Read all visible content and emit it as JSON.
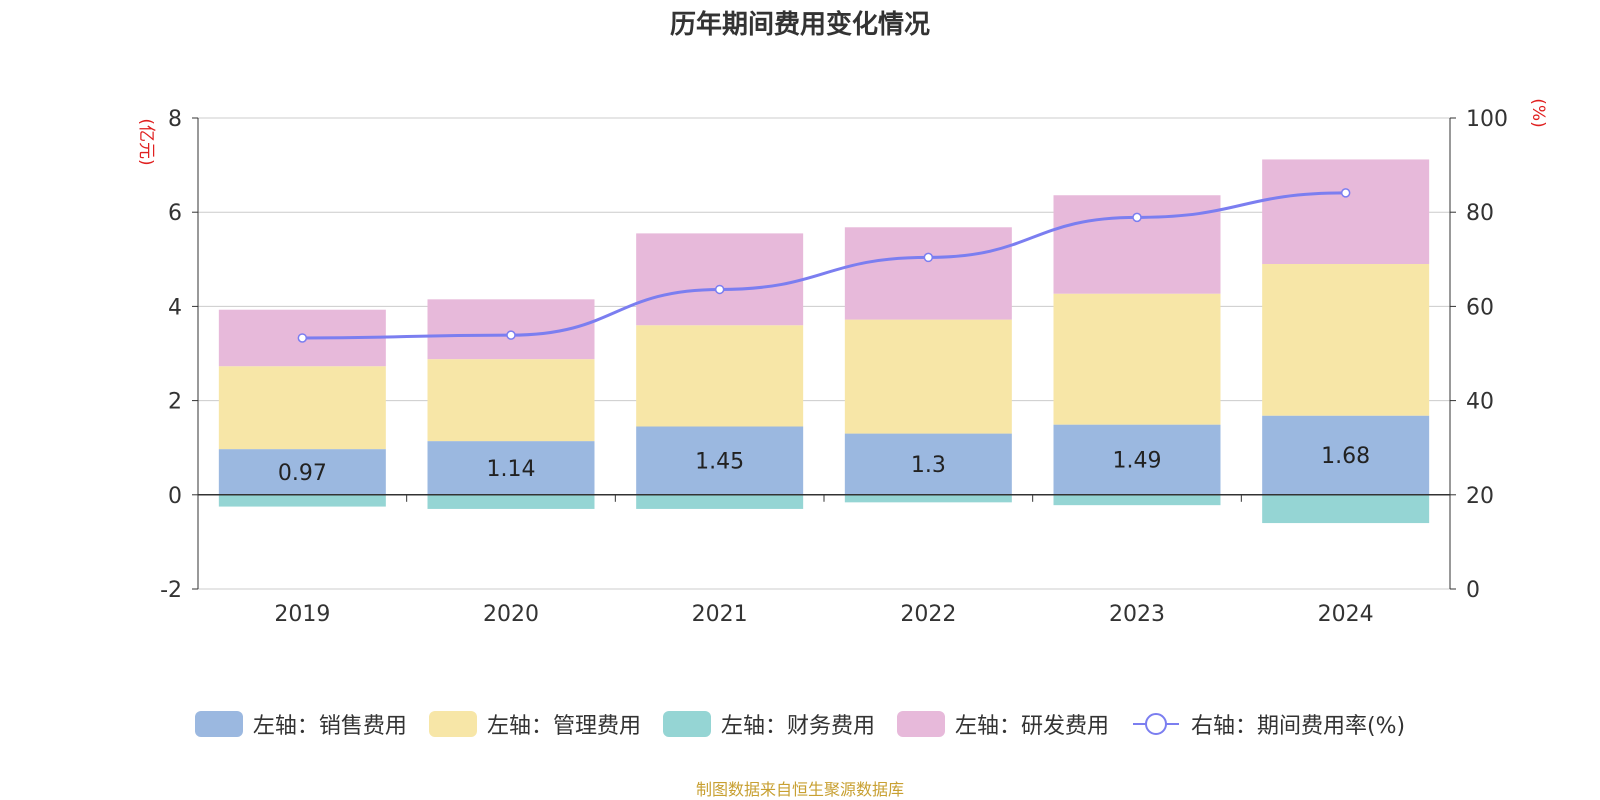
{
  "title": "历年期间费用变化情况",
  "source": "制图数据来自恒生聚源数据库",
  "legend": [
    {
      "label": "左轴：销售费用",
      "color": "#9bb8e0",
      "type": "bar"
    },
    {
      "label": "左轴：管理费用",
      "color": "#f7e6a7",
      "type": "bar"
    },
    {
      "label": "左轴：财务费用",
      "color": "#95d5d4",
      "type": "bar"
    },
    {
      "label": "左轴：研发费用",
      "color": "#e7b9da",
      "type": "bar"
    },
    {
      "label": "右轴：期间费用率(%)",
      "color": "#7b7ef0",
      "type": "line"
    }
  ],
  "chart_data": {
    "type": "bar",
    "stacked": true,
    "title": "历年期间费用变化情况",
    "categories": [
      "2019",
      "2020",
      "2021",
      "2022",
      "2023",
      "2024"
    ],
    "left_axis": {
      "label": "(亿元)",
      "range": [
        -2,
        8
      ],
      "ticks": [
        -2,
        0,
        2,
        4,
        6,
        8
      ]
    },
    "right_axis": {
      "label": "(%)",
      "range": [
        0,
        100
      ],
      "ticks": [
        0,
        20,
        40,
        60,
        80,
        100
      ]
    },
    "series": [
      {
        "name": "左轴：销售费用",
        "axis": "left",
        "color": "#9bb8e0",
        "values": [
          0.97,
          1.14,
          1.45,
          1.3,
          1.49,
          1.68
        ],
        "labels": [
          "0.97",
          "1.14",
          "1.45",
          "1.3",
          "1.49",
          "1.68"
        ]
      },
      {
        "name": "左轴：管理费用",
        "axis": "left",
        "color": "#f7e6a7",
        "values": [
          1.76,
          1.74,
          2.15,
          2.42,
          2.78,
          3.22
        ]
      },
      {
        "name": "左轴：财务费用",
        "axis": "left",
        "color": "#95d5d4",
        "values": [
          -0.25,
          -0.3,
          -0.3,
          -0.16,
          -0.22,
          -0.6
        ]
      },
      {
        "name": "左轴：研发费用",
        "axis": "left",
        "color": "#e7b9da",
        "values": [
          1.2,
          1.27,
          1.95,
          1.96,
          2.09,
          2.22
        ]
      },
      {
        "name": "右轴：期间费用率(%)",
        "axis": "right",
        "type": "line",
        "color": "#7b7ef0",
        "values": [
          53.3,
          53.9,
          63.6,
          70.4,
          78.9,
          84.1
        ]
      }
    ],
    "grid": true,
    "legend_position": "bottom"
  }
}
